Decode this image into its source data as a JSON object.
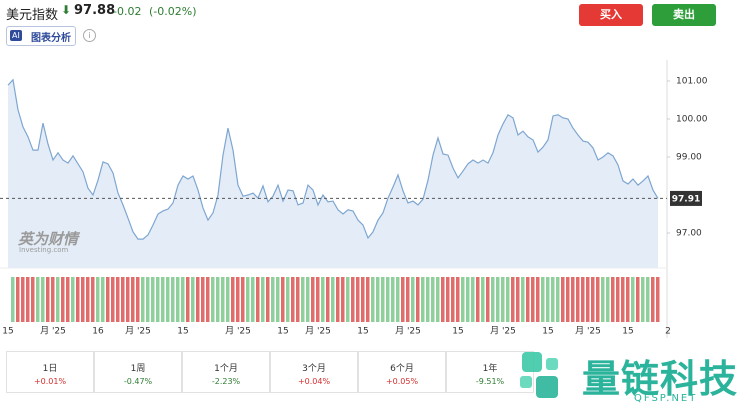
{
  "header": {
    "name": "美元指数",
    "price": 97.88,
    "change": -0.02,
    "change_percent": {
      "value": -0.02,
      "label": "(-0.02%)"
    },
    "buy": "买入",
    "sell": "卖出",
    "ai_badge": "AI",
    "ai_label": "图表分析"
  },
  "chart_data": {
    "type": "area",
    "categories": [
      "15",
      null,
      null,
      null,
      null,
      null,
      null,
      null,
      null,
      "月 '25",
      null,
      null,
      null,
      null,
      null,
      null,
      null,
      null,
      "16",
      null,
      null,
      null,
      null,
      null,
      null,
      null,
      "月 '25",
      null,
      null,
      null,
      null,
      null,
      null,
      null,
      null,
      "15",
      null,
      null,
      null,
      null,
      null,
      null,
      null,
      null,
      null,
      null,
      "月 '25",
      null,
      null,
      null,
      null,
      null,
      null,
      null,
      null,
      "15",
      null,
      null,
      null,
      null,
      null,
      null,
      "月 '25",
      null,
      null,
      null,
      null,
      null,
      null,
      null,
      null,
      "15",
      null,
      null,
      null,
      null,
      null,
      null,
      null,
      null,
      "月 '25",
      null,
      null,
      null,
      null,
      null,
      null,
      null,
      null,
      null,
      "15",
      null,
      null,
      null,
      null,
      null,
      null,
      null,
      null,
      "月 '25",
      null,
      null,
      null,
      null,
      null,
      null,
      null,
      null,
      "15",
      null,
      null,
      null,
      null,
      null,
      null,
      null,
      "月 '25",
      null,
      null,
      null,
      null,
      null,
      null,
      null,
      "15",
      null,
      null,
      null,
      null,
      null,
      null,
      null,
      "2"
    ],
    "values": [
      100.89,
      101.03,
      100.24,
      99.79,
      99.53,
      99.18,
      99.18,
      99.89,
      99.34,
      98.92,
      99.11,
      98.92,
      98.84,
      99.03,
      98.82,
      98.61,
      98.18,
      98.0,
      98.39,
      98.87,
      98.82,
      98.58,
      98.05,
      97.74,
      97.39,
      97.03,
      96.84,
      96.84,
      96.95,
      97.21,
      97.5,
      97.58,
      97.63,
      97.79,
      98.26,
      98.5,
      98.42,
      98.5,
      98.13,
      97.66,
      97.34,
      97.53,
      98.0,
      99.05,
      99.76,
      99.18,
      98.26,
      97.97,
      98.0,
      98.05,
      97.92,
      98.24,
      97.82,
      97.97,
      98.26,
      97.84,
      98.13,
      98.11,
      97.74,
      97.79,
      98.26,
      98.13,
      97.74,
      98.0,
      97.82,
      97.84,
      97.61,
      97.5,
      97.61,
      97.58,
      97.34,
      97.21,
      96.87,
      97.03,
      97.34,
      97.53,
      97.92,
      98.21,
      98.53,
      98.11,
      97.79,
      97.84,
      97.74,
      97.89,
      98.39,
      99.05,
      99.5,
      99.08,
      99.05,
      98.71,
      98.45,
      98.63,
      98.82,
      98.92,
      98.84,
      98.92,
      98.84,
      99.11,
      99.58,
      99.87,
      100.11,
      100.03,
      99.58,
      99.68,
      99.53,
      99.45,
      99.13,
      99.26,
      99.45,
      100.08,
      100.11,
      100.03,
      100.0,
      99.76,
      99.58,
      99.42,
      99.39,
      99.24,
      98.92,
      99.0,
      99.11,
      99.03,
      98.79,
      98.37,
      98.29,
      98.42,
      98.26,
      98.37,
      98.5,
      98.13,
      97.91,
      null,
      null
    ],
    "color": "#7ea6d1",
    "fill": "#e4edf7",
    "up_color": "#8fcf9c",
    "down_color": "#e06c6c",
    "ylim": [
      96.08,
      101.42
    ],
    "yticks": [
      {
        "value": 97,
        "label": "97.00"
      },
      {
        "value": 99,
        "label": "99.00"
      },
      {
        "value": 100,
        "label": "100.00"
      },
      {
        "value": 101,
        "label": "101.00"
      }
    ],
    "last_price": 97.91
  },
  "performance": {
    "up_color": "#d32f2f",
    "down_color": "#2e7d32",
    "periods": [
      {
        "name": "1日",
        "change": {
          "value": 0.01,
          "label": "+0.01%"
        }
      },
      {
        "name": "1周",
        "change": {
          "value": -0.47,
          "label": "-0.47%"
        }
      },
      {
        "name": "1个月",
        "change": {
          "value": -2.23,
          "label": "-2.23%"
        }
      },
      {
        "name": "3个月",
        "change": {
          "value": 0.04,
          "label": "+0.04%"
        }
      },
      {
        "name": "6个月",
        "change": {
          "value": 0.05,
          "label": "+0.05%"
        }
      },
      {
        "name": "1年",
        "change": {
          "value": -9.51,
          "label": "-9.51%"
        }
      }
    ]
  },
  "watermarks": {
    "investing_cn": "英为财情",
    "investing": "Investing.com",
    "brand": "量链科技",
    "site": "QFSP.NET"
  }
}
